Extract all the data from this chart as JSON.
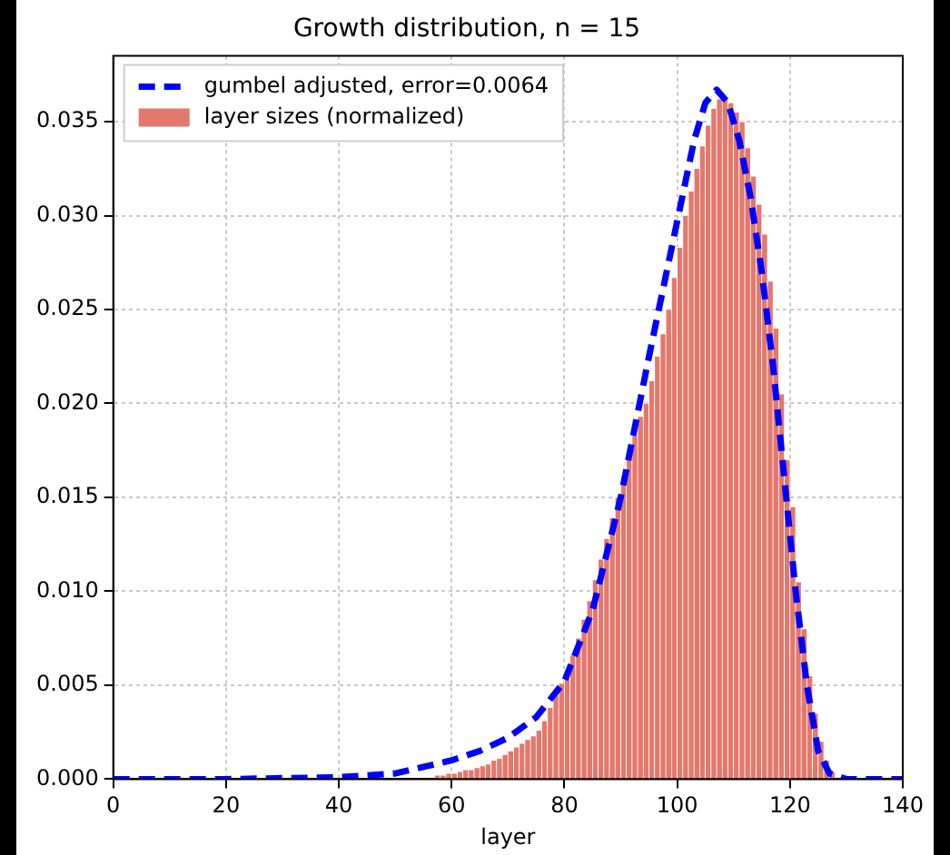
{
  "chart_data": {
    "type": "histogram",
    "title": "Growth distribution, n = 15",
    "xlabel": "layer",
    "xlim": [
      0,
      140
    ],
    "xticks": [
      0,
      20,
      40,
      60,
      80,
      100,
      120,
      140
    ],
    "ylim": [
      0,
      0.0385
    ],
    "yticks": [
      {
        "value": 0,
        "label": "0.000"
      },
      {
        "value": 0.005,
        "label": "0.005"
      },
      {
        "value": 0.01,
        "label": "0.010"
      },
      {
        "value": 0.015,
        "label": "0.015"
      },
      {
        "value": 0.02,
        "label": "0.020"
      },
      {
        "value": 0.025,
        "label": "0.025"
      },
      {
        "value": 0.03,
        "label": "0.030"
      },
      {
        "value": 0.035,
        "label": "0.035"
      }
    ],
    "grid": true,
    "legend": "top left",
    "marker": "none",
    "series": [
      {
        "name": "gumbel adjusted, error=0.0064",
        "type": "line",
        "line_style": "dashed",
        "color": "#0000ff",
        "x": [
          0,
          20,
          40,
          50,
          60,
          65,
          70,
          75,
          80,
          85,
          90,
          95,
          100,
          103,
          105,
          107,
          109,
          111,
          113,
          115,
          117,
          119,
          121,
          123,
          125,
          127,
          130,
          140
        ],
        "values": [
          0,
          0,
          0.0001,
          0.0003,
          0.001,
          0.0015,
          0.0022,
          0.0033,
          0.0052,
          0.009,
          0.015,
          0.0225,
          0.0297,
          0.034,
          0.036,
          0.0367,
          0.036,
          0.034,
          0.031,
          0.027,
          0.022,
          0.016,
          0.01,
          0.005,
          0.0015,
          0.0003,
          0,
          0
        ]
      },
      {
        "name": "layer sizes (normalized)",
        "type": "histogram",
        "color": "#e3786c",
        "bins": [
          57,
          58,
          59,
          60,
          61,
          62,
          63,
          64,
          65,
          66,
          67,
          68,
          69,
          70,
          71,
          72,
          73,
          74,
          75,
          76,
          77,
          78,
          79,
          80,
          81,
          82,
          83,
          84,
          85,
          86,
          87,
          88,
          89,
          90,
          91,
          92,
          93,
          94,
          95,
          96,
          97,
          98,
          99,
          100,
          101,
          102,
          103,
          104,
          105,
          106,
          107,
          108,
          109,
          110,
          111,
          112,
          113,
          114,
          115,
          116,
          117,
          118,
          119,
          120,
          121,
          122,
          123,
          124,
          125,
          126,
          127,
          128
        ],
        "values": [
          0.0002,
          0.0002,
          0.0003,
          0.0003,
          0.0004,
          0.0005,
          0.0005,
          0.0006,
          0.0007,
          0.0008,
          0.001,
          0.0011,
          0.0013,
          0.0015,
          0.0017,
          0.0019,
          0.0021,
          0.0023,
          0.0026,
          0.0031,
          0.0038,
          0.0045,
          0.0051,
          0.0058,
          0.0066,
          0.0075,
          0.0085,
          0.0095,
          0.0106,
          0.0117,
          0.0128,
          0.0139,
          0.015,
          0.0161,
          0.0172,
          0.0183,
          0.0193,
          0.02,
          0.0212,
          0.0225,
          0.0237,
          0.025,
          0.0267,
          0.0283,
          0.03,
          0.0313,
          0.0325,
          0.0337,
          0.0348,
          0.0357,
          0.0362,
          0.0362,
          0.036,
          0.0355,
          0.035,
          0.0336,
          0.0321,
          0.0306,
          0.029,
          0.0265,
          0.024,
          0.0205,
          0.017,
          0.0145,
          0.0105,
          0.008,
          0.0055,
          0.0035,
          0.002,
          0.001,
          0.0004
        ]
      }
    ]
  }
}
